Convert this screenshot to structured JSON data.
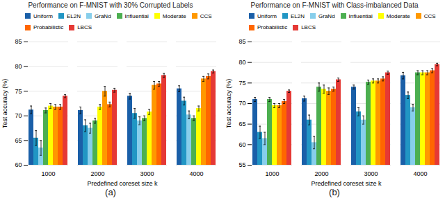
{
  "chart_data": [
    {
      "type": "bar",
      "title": "Performance on F-MNIST with 30% Corrupted Labels",
      "xlabel": "Predefined coreset size k",
      "ylabel": "Test accuracy (%)",
      "categories": [
        1000,
        2000,
        3000,
        4000
      ],
      "series": [
        {
          "name": "Uniform",
          "color": "#1a5fa8",
          "values": [
            71.2,
            71.1,
            74.0,
            75.5
          ],
          "errors": [
            0.8,
            0.7,
            0.6,
            0.6
          ]
        },
        {
          "name": "EL2N",
          "color": "#2196c4",
          "values": [
            65.5,
            68.0,
            70.5,
            73.0
          ],
          "errors": [
            1.5,
            1.2,
            1.0,
            0.8
          ]
        },
        {
          "name": "GraNd",
          "color": "#87ceeb",
          "values": [
            63.5,
            67.5,
            69.0,
            70.2
          ],
          "errors": [
            1.5,
            1.0,
            0.8,
            0.8
          ]
        },
        {
          "name": "Influential",
          "color": "#4caf50",
          "values": [
            71.1,
            69.0,
            69.5,
            69.5
          ],
          "errors": [
            0.5,
            0.5,
            0.5,
            0.5
          ]
        },
        {
          "name": "Moderate",
          "color": "#ffff00",
          "values": [
            72.0,
            71.8,
            70.8,
            71.5
          ],
          "errors": [
            0.5,
            0.5,
            0.5,
            0.5
          ]
        },
        {
          "name": "CCS",
          "color": "#ff9800",
          "values": [
            71.8,
            75.0,
            76.2,
            77.5
          ],
          "errors": [
            0.5,
            1.0,
            0.8,
            0.5
          ]
        },
        {
          "name": "Probabilistic",
          "color": "#ff6600",
          "values": [
            71.8,
            72.3,
            76.5,
            78.0
          ],
          "errors": [
            0.5,
            0.5,
            0.5,
            0.5
          ]
        },
        {
          "name": "LBCS",
          "color": "#e53935",
          "values": [
            74.0,
            75.2,
            78.2,
            79.0
          ],
          "errors": [
            0.3,
            0.4,
            0.4,
            0.3
          ]
        }
      ],
      "ylim": [
        60,
        85
      ],
      "yticks": [
        60,
        65,
        70,
        75,
        80,
        85
      ],
      "grid": true,
      "legend": "upper left",
      "annotations": [
        "(a)"
      ]
    },
    {
      "type": "bar",
      "title": "Performance on F-MNIST with Class-imbalanced Data",
      "xlabel": "Predefined coreset size k",
      "ylabel": "Test accuracy (%)",
      "categories": [
        1000,
        2000,
        3000,
        4000
      ],
      "series": [
        {
          "name": "Uniform",
          "color": "#1a5fa8",
          "values": [
            71.0,
            71.2,
            74.0,
            76.8
          ],
          "errors": [
            0.5,
            0.6,
            0.5,
            0.8
          ]
        },
        {
          "name": "EL2N",
          "color": "#2196c4",
          "values": [
            63.0,
            66.0,
            68.0,
            72.0
          ],
          "errors": [
            1.5,
            1.2,
            1.0,
            0.8
          ]
        },
        {
          "name": "GraNd",
          "color": "#87ceeb",
          "values": [
            61.5,
            60.5,
            66.0,
            69.0
          ],
          "errors": [
            1.5,
            1.5,
            1.0,
            0.8
          ]
        },
        {
          "name": "Influential",
          "color": "#4caf50",
          "values": [
            71.0,
            74.0,
            75.2,
            77.5
          ],
          "errors": [
            0.5,
            1.0,
            0.5,
            0.5
          ]
        },
        {
          "name": "Moderate",
          "color": "#ffff00",
          "values": [
            69.5,
            73.5,
            75.5,
            77.5
          ],
          "errors": [
            0.5,
            1.0,
            0.5,
            0.5
          ]
        },
        {
          "name": "CCS",
          "color": "#ff9800",
          "values": [
            69.5,
            73.0,
            75.5,
            77.5
          ],
          "errors": [
            0.5,
            0.8,
            0.5,
            0.5
          ]
        },
        {
          "name": "Probabilistic",
          "color": "#ff6600",
          "values": [
            70.5,
            73.5,
            76.0,
            78.0
          ],
          "errors": [
            0.5,
            0.5,
            0.5,
            0.5
          ]
        },
        {
          "name": "LBCS",
          "color": "#e53935",
          "values": [
            73.0,
            75.8,
            77.5,
            79.5
          ],
          "errors": [
            0.3,
            0.4,
            0.4,
            0.3
          ]
        }
      ],
      "ylim": [
        55,
        85
      ],
      "yticks": [
        55,
        60,
        65,
        70,
        75,
        80,
        85
      ],
      "grid": true,
      "legend": "upper left",
      "annotations": [
        "(b)"
      ]
    }
  ]
}
